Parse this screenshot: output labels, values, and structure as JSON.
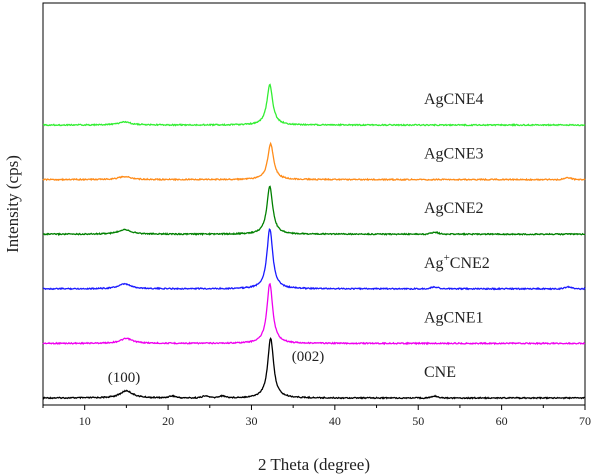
{
  "chart_data": {
    "type": "line",
    "title": "",
    "xlabel": "2 Theta (degree)",
    "ylabel": "Intensity (cps)",
    "xlim": [
      5,
      70
    ],
    "x_ticks": [
      10,
      20,
      30,
      40,
      50,
      60,
      70
    ],
    "x_tick_labels": [
      "10",
      "20",
      "30",
      "40",
      "50",
      "60",
      "70"
    ],
    "y_ticks_shown": false,
    "grid": false,
    "legend": "none",
    "label_placement": "inline-right-of-peak",
    "annotations": [
      {
        "text": "(100)",
        "x": 15
      },
      {
        "text": "(002)",
        "x": 32.3
      }
    ],
    "series": [
      {
        "name": "CNE",
        "color": "#000000",
        "offset": 0,
        "peaks": [
          {
            "x": 15.0,
            "height": 0.12
          },
          {
            "x": 32.3,
            "height": 1.0
          }
        ],
        "noise_x": [
          20.5,
          24.5,
          26.5,
          52.0
        ]
      },
      {
        "name": "AgCNE1",
        "color": "#ee00ee",
        "offset": 1,
        "peaks": [
          {
            "x": 15.0,
            "height": 0.08
          },
          {
            "x": 32.2,
            "height": 1.0
          }
        ],
        "noise_x": []
      },
      {
        "name": "Ag+CNE2",
        "color": "#1a1aff",
        "offset": 2,
        "peaks": [
          {
            "x": 14.8,
            "height": 0.08
          },
          {
            "x": 32.2,
            "height": 1.0
          }
        ],
        "noise_x": [
          52.0,
          68.0
        ]
      },
      {
        "name": "AgCNE2",
        "color": "#008000",
        "offset": 3,
        "peaks": [
          {
            "x": 14.8,
            "height": 0.08
          },
          {
            "x": 32.2,
            "height": 0.8
          }
        ],
        "noise_x": [
          52.0
        ]
      },
      {
        "name": "AgCNE3",
        "color": "#ff8c1a",
        "offset": 4,
        "peaks": [
          {
            "x": 14.8,
            "height": 0.05
          },
          {
            "x": 32.3,
            "height": 0.6
          }
        ],
        "noise_x": [
          68.0
        ]
      },
      {
        "name": "AgCNE4",
        "color": "#33ee33",
        "offset": 5,
        "peaks": [
          {
            "x": 14.8,
            "height": 0.05
          },
          {
            "x": 32.2,
            "height": 0.67
          }
        ],
        "noise_x": []
      }
    ]
  }
}
